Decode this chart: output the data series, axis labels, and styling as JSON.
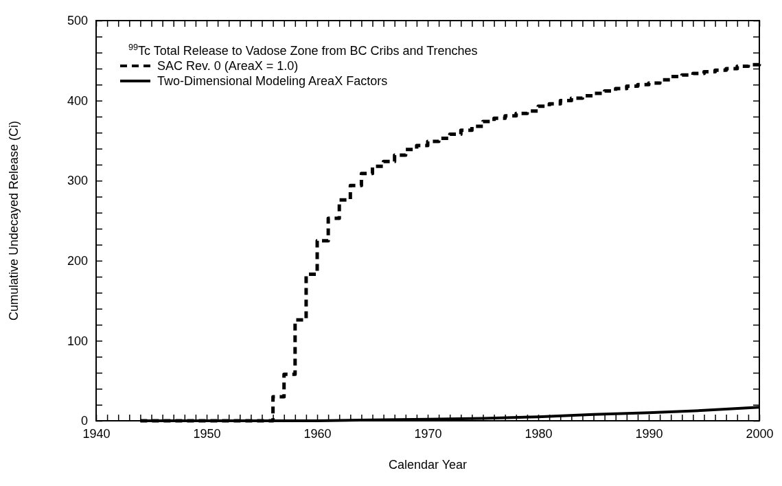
{
  "chart_data": {
    "type": "line",
    "xlabel": "Calendar Year",
    "ylabel": "Cumulative Undecayed Release (Ci)",
    "legend_title": "$^{99}$Tc Total Release to Vadose Zone from BC Cribs and Trenches",
    "legend": "top left",
    "xlim": [
      1940,
      2000
    ],
    "ylim": [
      0,
      500
    ],
    "xticks": [
      1940,
      {
        "value": 1941,
        "label": null
      },
      {
        "value": 1942,
        "label": null
      },
      {
        "value": 1943,
        "label": null
      },
      {
        "value": 1944,
        "label": null
      },
      {
        "value": 1945,
        "label": null
      },
      {
        "value": 1946,
        "label": null
      },
      {
        "value": 1947,
        "label": null
      },
      {
        "value": 1948,
        "label": null
      },
      {
        "value": 1949,
        "label": null
      },
      1950,
      {
        "value": 1951,
        "label": null
      },
      {
        "value": 1952,
        "label": null
      },
      {
        "value": 1953,
        "label": null
      },
      {
        "value": 1954,
        "label": null
      },
      {
        "value": 1955,
        "label": null
      },
      {
        "value": 1956,
        "label": null
      },
      {
        "value": 1957,
        "label": null
      },
      {
        "value": 1958,
        "label": null
      },
      {
        "value": 1959,
        "label": null
      },
      1960,
      {
        "value": 1961,
        "label": null
      },
      {
        "value": 1962,
        "label": null
      },
      {
        "value": 1963,
        "label": null
      },
      {
        "value": 1964,
        "label": null
      },
      {
        "value": 1965,
        "label": null
      },
      {
        "value": 1966,
        "label": null
      },
      {
        "value": 1967,
        "label": null
      },
      {
        "value": 1968,
        "label": null
      },
      {
        "value": 1969,
        "label": null
      },
      1970,
      {
        "value": 1971,
        "label": null
      },
      {
        "value": 1972,
        "label": null
      },
      {
        "value": 1973,
        "label": null
      },
      {
        "value": 1974,
        "label": null
      },
      {
        "value": 1975,
        "label": null
      },
      {
        "value": 1976,
        "label": null
      },
      {
        "value": 1977,
        "label": null
      },
      {
        "value": 1978,
        "label": null
      },
      {
        "value": 1979,
        "label": null
      },
      1980,
      {
        "value": 1981,
        "label": null
      },
      {
        "value": 1982,
        "label": null
      },
      {
        "value": 1983,
        "label": null
      },
      {
        "value": 1984,
        "label": null
      },
      {
        "value": 1985,
        "label": null
      },
      {
        "value": 1986,
        "label": null
      },
      {
        "value": 1987,
        "label": null
      },
      {
        "value": 1988,
        "label": null
      },
      {
        "value": 1989,
        "label": null
      },
      1990,
      {
        "value": 1991,
        "label": null
      },
      {
        "value": 1992,
        "label": null
      },
      {
        "value": 1993,
        "label": null
      },
      {
        "value": 1994,
        "label": null
      },
      {
        "value": 1995,
        "label": null
      },
      {
        "value": 1996,
        "label": null
      },
      {
        "value": 1997,
        "label": null
      },
      {
        "value": 1998,
        "label": null
      },
      {
        "value": 1999,
        "label": null
      },
      2000
    ],
    "yticks": [
      0,
      {
        "value": 20,
        "label": null
      },
      {
        "value": 40,
        "label": null
      },
      {
        "value": 60,
        "label": null
      },
      {
        "value": 80,
        "label": null
      },
      100,
      {
        "value": 120,
        "label": null
      },
      {
        "value": 140,
        "label": null
      },
      {
        "value": 160,
        "label": null
      },
      {
        "value": 180,
        "label": null
      },
      200,
      {
        "value": 220,
        "label": null
      },
      {
        "value": 240,
        "label": null
      },
      {
        "value": 260,
        "label": null
      },
      {
        "value": 280,
        "label": null
      },
      300,
      {
        "value": 320,
        "label": null
      },
      {
        "value": 340,
        "label": null
      },
      {
        "value": 360,
        "label": null
      },
      {
        "value": 380,
        "label": null
      },
      400,
      {
        "value": 420,
        "label": null
      },
      {
        "value": 440,
        "label": null
      },
      {
        "value": 460,
        "label": null
      },
      {
        "value": 480,
        "label": null
      },
      500
    ],
    "series": [
      {
        "name": "SAC Rev. 0 (AreaX = 1.0)",
        "type": "step",
        "color": "#000000",
        "line_style": "dashed",
        "x": [
          1944,
          1956,
          1957,
          1958,
          1959,
          1960,
          1961,
          1962,
          1963,
          1964,
          1965,
          1966,
          1967,
          1968,
          1969,
          1970,
          1971,
          1972,
          1973,
          1974,
          1975,
          1976,
          1977,
          1978,
          1979,
          1980,
          1981,
          1982,
          1983,
          1984,
          1985,
          1986,
          1987,
          1988,
          1989,
          1990,
          1991,
          1992,
          1993,
          1994,
          1995,
          1996,
          1997,
          1998,
          1999,
          2000
        ],
        "values": [
          0,
          30,
          58,
          126,
          183,
          225,
          253,
          276,
          294,
          309,
          318,
          324,
          332,
          339,
          344,
          349,
          353,
          358,
          363,
          368,
          374,
          378,
          381,
          384,
          387,
          393,
          396,
          400,
          403,
          406,
          409,
          412,
          415,
          418,
          420,
          422,
          426,
          430,
          432,
          434,
          436,
          438,
          440,
          443,
          445,
          448
        ]
      },
      {
        "name": "Two-Dimensional Modeling AreaX Factors",
        "color": "#000000",
        "line_style": "solid",
        "x": [
          1944,
          1955,
          1960,
          1965,
          1970,
          1975,
          1980,
          1985,
          1990,
          1995,
          2000
        ],
        "values": [
          0,
          0,
          0,
          1,
          2,
          3,
          5,
          8,
          10,
          13,
          17
        ]
      }
    ]
  }
}
